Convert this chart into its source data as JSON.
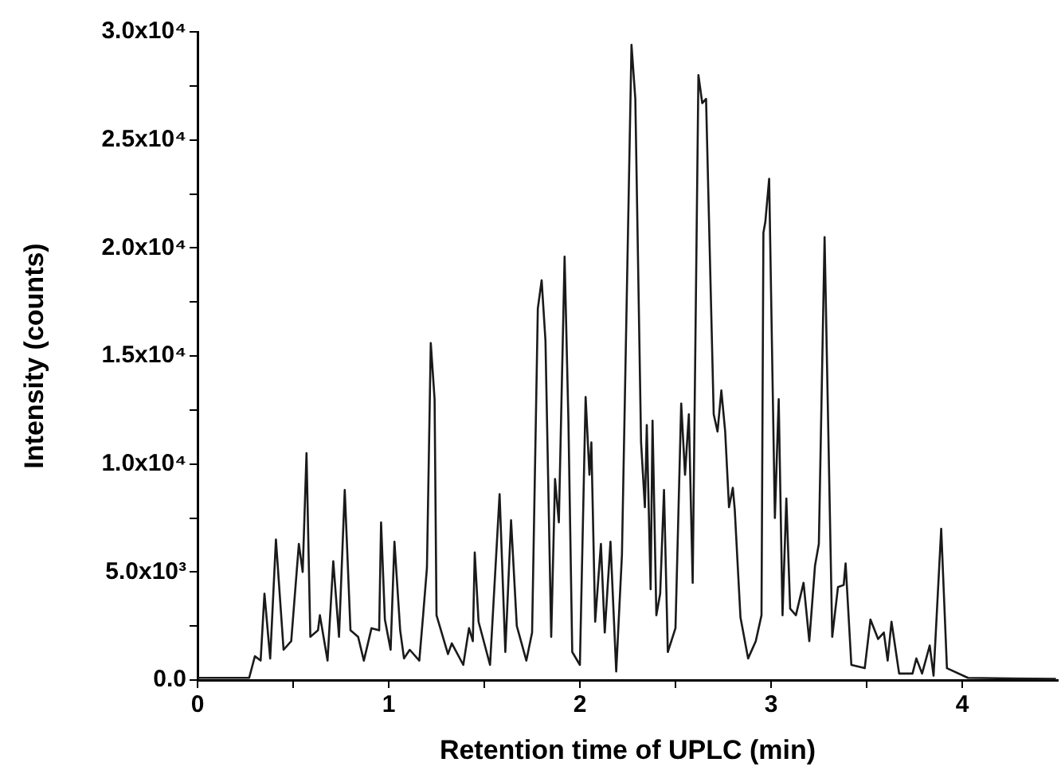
{
  "chart_data": {
    "type": "line",
    "xlabel": "Retention time of UPLC (min)",
    "ylabel": "Intensity (counts)",
    "xlim": [
      0,
      4.5
    ],
    "xticks": [
      0,
      {
        "value": 0.5,
        "label": null
      },
      1,
      {
        "value": 1.5,
        "label": null
      },
      2,
      {
        "value": 2.5,
        "label": null
      },
      3,
      {
        "value": 3.5,
        "label": null
      },
      4
    ],
    "ylim": [
      0,
      30000
    ],
    "yticks": [
      {
        "value": 0,
        "label": "0.0"
      },
      {
        "value": 2500,
        "label": null
      },
      {
        "value": 5000,
        "label": "5.0x10³"
      },
      {
        "value": 7500,
        "label": null
      },
      {
        "value": 10000,
        "label": "1.0x10⁴"
      },
      {
        "value": 12500,
        "label": null
      },
      {
        "value": 15000,
        "label": "1.5x10⁴"
      },
      {
        "value": 17500,
        "label": null
      },
      {
        "value": 20000,
        "label": "2.0x10⁴"
      },
      {
        "value": 22500,
        "label": null
      },
      {
        "value": 25000,
        "label": "2.5x10⁴"
      },
      {
        "value": 27500,
        "label": null
      },
      {
        "value": 30000,
        "label": "3.0x10⁴"
      }
    ],
    "grid": false,
    "legend": false,
    "marker": "none",
    "line_style": "solid",
    "series": [
      {
        "color": "#1a1a1a",
        "x": [
          0,
          0.27,
          0.3,
          0.33,
          0.35,
          0.38,
          0.41,
          0.45,
          0.49,
          0.53,
          0.55,
          0.57,
          0.59,
          0.63,
          0.64,
          0.68,
          0.71,
          0.74,
          0.77,
          0.8,
          0.84,
          0.87,
          0.91,
          0.95,
          0.96,
          0.98,
          1.01,
          1.03,
          1.06,
          1.08,
          1.11,
          1.16,
          1.18,
          1.2,
          1.22,
          1.24,
          1.25,
          1.31,
          1.33,
          1.39,
          1.42,
          1.44,
          1.45,
          1.47,
          1.53,
          1.58,
          1.61,
          1.64,
          1.67,
          1.72,
          1.75,
          1.78,
          1.8,
          1.82,
          1.85,
          1.87,
          1.89,
          1.92,
          1.94,
          1.96,
          2.0,
          2.03,
          2.05,
          2.06,
          2.08,
          2.11,
          2.13,
          2.16,
          2.19,
          2.22,
          2.27,
          2.29,
          2.32,
          2.34,
          2.35,
          2.37,
          2.38,
          2.4,
          2.42,
          2.44,
          2.46,
          2.5,
          2.53,
          2.55,
          2.57,
          2.59,
          2.62,
          2.64,
          2.66,
          2.7,
          2.72,
          2.74,
          2.76,
          2.78,
          2.8,
          2.81,
          2.84,
          2.88,
          2.92,
          2.95,
          2.96,
          2.97,
          2.99,
          3.02,
          3.04,
          3.06,
          3.08,
          3.1,
          3.13,
          3.17,
          3.2,
          3.23,
          3.25,
          3.28,
          3.32,
          3.35,
          3.38,
          3.39,
          3.42,
          3.49,
          3.52,
          3.56,
          3.59,
          3.61,
          3.63,
          3.67,
          3.74,
          3.76,
          3.79,
          3.83,
          3.85,
          3.89,
          3.92,
          4.03,
          4.49
        ],
        "values": [
          100,
          100,
          1100,
          900,
          4000,
          1000,
          6500,
          1400,
          1800,
          6300,
          5000,
          10500,
          2000,
          2300,
          3000,
          900,
          5500,
          2000,
          8800,
          2300,
          2000,
          900,
          2400,
          2300,
          7300,
          2800,
          1400,
          6400,
          2300,
          1000,
          1400,
          900,
          3000,
          5200,
          15600,
          13000,
          3000,
          1200,
          1700,
          700,
          2400,
          1800,
          5900,
          2700,
          700,
          8600,
          1300,
          7400,
          2500,
          900,
          2200,
          17200,
          18500,
          15700,
          2000,
          9300,
          7300,
          19600,
          12000,
          1300,
          700,
          13100,
          9500,
          11000,
          2700,
          6300,
          2200,
          6400,
          400,
          5800,
          29400,
          26900,
          11000,
          8000,
          11800,
          4200,
          12000,
          3000,
          4000,
          8800,
          1300,
          2400,
          12800,
          9500,
          12300,
          4500,
          28000,
          26700,
          26900,
          12300,
          11500,
          13400,
          11500,
          8000,
          8900,
          7900,
          2900,
          1000,
          1800,
          3000,
          20700,
          21200,
          23200,
          7500,
          13000,
          3000,
          8400,
          3300,
          3000,
          4500,
          1800,
          5300,
          6300,
          20500,
          2000,
          4300,
          4400,
          5400,
          700,
          550,
          2800,
          1900,
          2200,
          900,
          2700,
          300,
          300,
          1000,
          300,
          1600,
          200,
          7000,
          550,
          100,
          50
        ]
      }
    ]
  }
}
